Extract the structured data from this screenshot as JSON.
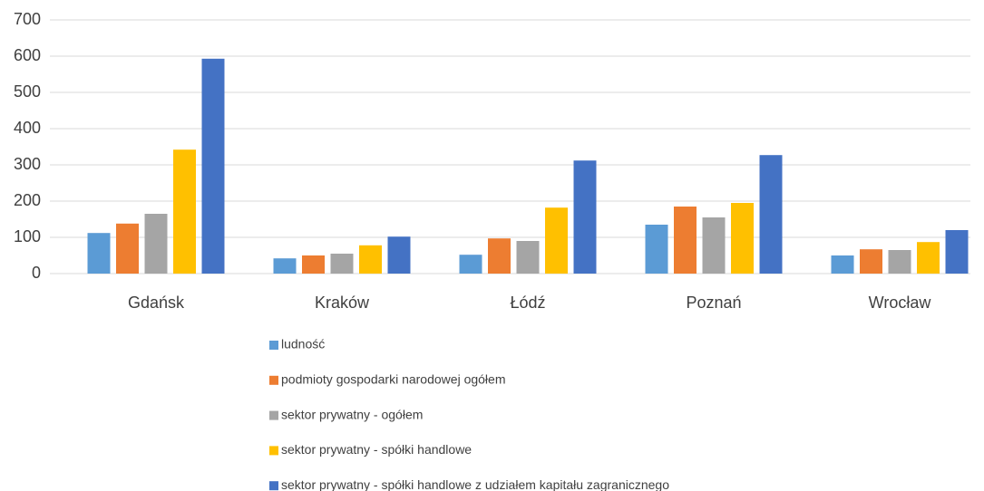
{
  "chart_data": {
    "type": "bar",
    "categories": [
      "Gdańsk",
      "Kraków",
      "Łódź",
      "Poznań",
      "Wrocław"
    ],
    "series": [
      {
        "name": "ludność",
        "color": "#5b9bd5",
        "values": [
          112,
          42,
          52,
          135,
          50
        ]
      },
      {
        "name": "podmioty gospodarki narodowej ogółem",
        "color": "#ed7d31",
        "values": [
          138,
          50,
          97,
          185,
          67
        ]
      },
      {
        "name": "sektor prywatny - ogółem",
        "color": "#a5a5a5",
        "values": [
          165,
          55,
          90,
          155,
          65
        ]
      },
      {
        "name": "sektor prywatny - spółki handlowe",
        "color": "#ffc000",
        "values": [
          342,
          78,
          182,
          195,
          87
        ]
      },
      {
        "name": "sektor prywatny - spółki handlowe z udziałem kapitału zagranicznego",
        "color": "#4472c4",
        "values": [
          593,
          102,
          312,
          327,
          120
        ]
      }
    ],
    "ylim": [
      0,
      700
    ],
    "yticks": [
      0,
      100,
      200,
      300,
      400,
      500,
      600,
      700
    ],
    "grid": true
  }
}
